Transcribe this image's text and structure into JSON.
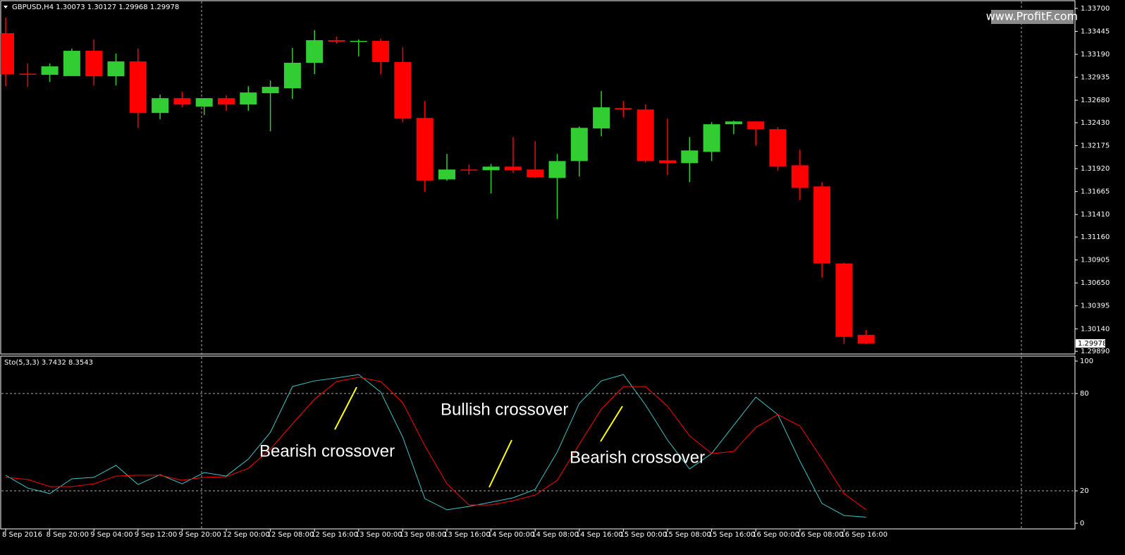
{
  "chart_data": [
    {
      "type": "candlestick",
      "title": "GBPUSD,H4  1.30073 1.30127 1.29968 1.29978",
      "watermark": "www.ProfitF.com",
      "categories": [
        "8 Sep 2016",
        null,
        "8 Sep 20:00",
        null,
        "9 Sep 04:00",
        null,
        "9 Sep 12:00",
        null,
        "9 Sep 20:00",
        null,
        "12 Sep 00:00",
        null,
        "12 Sep 08:00",
        null,
        "12 Sep 16:00",
        null,
        "13 Sep 00:00",
        null,
        "13 Sep 08:00",
        null,
        "13 Sep 16:00",
        null,
        "14 Sep 00:00",
        null,
        "14 Sep 08:00",
        null,
        "14 Sep 16:00",
        null,
        "15 Sep 00:00",
        null,
        "15 Sep 08:00",
        null,
        "15 Sep 16:00",
        null,
        "16 Sep 00:00",
        null,
        "16 Sep 08:00",
        null,
        "16 Sep 16:00",
        null
      ],
      "open": [
        1.33425,
        1.32975,
        1.32962,
        1.32948,
        1.33229,
        1.32946,
        1.33111,
        1.32538,
        1.32703,
        1.32609,
        1.32703,
        1.32632,
        1.32758,
        1.32813,
        1.33096,
        1.33347,
        1.33332,
        1.33339,
        1.33104,
        1.32483,
        1.318,
        1.3191,
        1.31902,
        1.31942,
        1.3191,
        1.31816,
        1.32004,
        1.32366,
        1.32593,
        1.32577,
        1.32012,
        1.31981,
        1.32106,
        1.32413,
        1.32444,
        1.32358,
        1.31957,
        1.31722,
        1.30866,
        1.30073
      ],
      "high": [
        1.33598,
        1.33088,
        1.33088,
        1.33253,
        1.33355,
        1.33198,
        1.33253,
        1.32742,
        1.32774,
        1.32703,
        1.32734,
        1.32836,
        1.32899,
        1.3326,
        1.33457,
        1.33386,
        1.33355,
        1.33362,
        1.33268,
        1.32672,
        1.32083,
        1.31965,
        1.31973,
        1.32271,
        1.32224,
        1.32083,
        1.32389,
        1.32782,
        1.32672,
        1.32633,
        1.32475,
        1.32271,
        1.32436,
        1.32452,
        1.32444,
        1.32381,
        1.3213,
        1.31769,
        1.30874,
        1.30127
      ],
      "low": [
        1.32836,
        1.32829,
        1.32884,
        1.3297,
        1.32844,
        1.32844,
        1.32373,
        1.32468,
        1.32601,
        1.32515,
        1.32562,
        1.32562,
        1.32334,
        1.32695,
        1.3297,
        1.33308,
        1.33166,
        1.3297,
        1.32436,
        1.31659,
        1.31785,
        1.31855,
        1.31643,
        1.31871,
        1.31816,
        1.31361,
        1.31832,
        1.32279,
        1.32491,
        1.31989,
        1.31847,
        1.31769,
        1.32004,
        1.32303,
        1.32177,
        1.31895,
        1.31573,
        1.30709,
        1.29971,
        1.29968
      ],
      "close": [
        1.3297,
        1.32965,
        1.33056,
        1.33229,
        1.32946,
        1.33111,
        1.32538,
        1.32703,
        1.32632,
        1.32703,
        1.32632,
        1.32766,
        1.32829,
        1.33096,
        1.33347,
        1.33332,
        1.33339,
        1.33104,
        1.32475,
        1.31785,
        1.3191,
        1.31902,
        1.31942,
        1.31902,
        1.31824,
        1.32004,
        1.32373,
        1.32601,
        1.32577,
        1.32004,
        1.31981,
        1.32122,
        1.32413,
        1.32444,
        1.32358,
        1.31942,
        1.31706,
        1.30866,
        1.3005,
        1.29978
      ],
      "up_color": "#32cd32",
      "down_color": "#ff0000",
      "last_price": 1.29978,
      "ylim": [
        1.2986,
        1.3377
      ],
      "yticks": [
        {
          "value": 1.337,
          "label": "1.33700"
        },
        1.33445,
        {
          "value": 1.3319,
          "label": "1.33190"
        },
        1.32935,
        {
          "value": 1.3268,
          "label": "1.32680"
        },
        {
          "value": 1.3243,
          "label": "1.32430"
        },
        1.32175,
        {
          "value": 1.3192,
          "label": "1.31920"
        },
        1.31665,
        {
          "value": 1.3141,
          "label": "1.31410"
        },
        {
          "value": 1.3116,
          "label": "1.31160"
        },
        1.30905,
        {
          "value": 1.3065,
          "label": "1.30650"
        },
        1.30395,
        {
          "value": 1.3014,
          "label": "1.30140"
        },
        {
          "value": 1.2989,
          "label": "1.29890"
        }
      ],
      "grid": false
    },
    {
      "type": "line",
      "title": "Sto(5,3,3) 3.7432 8.3543",
      "series": [
        {
          "color": "#3fc4c4",
          "values": [
            29.6,
            21.7,
            18.3,
            27.4,
            28.3,
            35.7,
            23.9,
            30,
            24.3,
            31.3,
            29.1,
            39.6,
            56.1,
            84.3,
            87.8,
            89.6,
            91.7,
            80.9,
            53,
            15.2,
            8.3,
            10.4,
            13,
            15.7,
            20.9,
            43.9,
            73.9,
            87.8,
            91.7,
            73,
            51.3,
            33.5,
            43,
            60.4,
            77.8,
            67,
            38.3,
            12.2,
            4.8,
            3.7432
          ]
        },
        {
          "color": "#ff0000",
          "values": [
            28.3,
            27,
            22.6,
            22.6,
            24.3,
            29.1,
            29.6,
            29.6,
            26.5,
            28.3,
            28.7,
            33.9,
            45.7,
            61.3,
            76.5,
            87.4,
            90,
            87.4,
            74.3,
            47.8,
            24.3,
            11.3,
            11.3,
            13.9,
            17.4,
            26.5,
            48.7,
            70.4,
            84.3,
            84.3,
            72.2,
            53.9,
            43,
            44.3,
            59.1,
            67,
            60,
            39.6,
            18.3,
            8.3543
          ]
        }
      ],
      "ylim": [
        0,
        100
      ],
      "yticks": [
        100,
        80,
        20,
        0
      ],
      "levels": [
        80,
        20
      ],
      "annotations": [
        {
          "text": "Bearish crossover"
        },
        {
          "text": "Bullish crossover"
        },
        {
          "text": "Bearish crossover"
        }
      ]
    }
  ]
}
